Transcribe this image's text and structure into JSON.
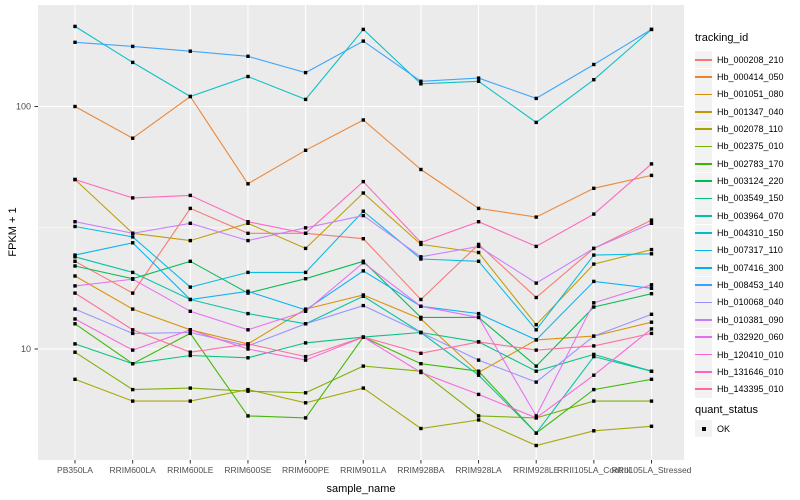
{
  "chart_data": {
    "type": "line",
    "title": "",
    "xlabel": "sample_name",
    "ylabel": "FPKM + 1",
    "y_scale": "log10",
    "y_ticks": [
      100,
      10
    ],
    "y_minor_ticks": [
      31.6
    ],
    "ylim": [
      3.5,
      260
    ],
    "grid": true,
    "legend_position": "right",
    "legend_title": "tracking_id",
    "point_marker": {
      "shape": "square",
      "color": "#000000"
    },
    "quant_legend": {
      "title": "quant_status",
      "items": [
        {
          "label": "OK"
        }
      ]
    },
    "layout_colors": {
      "panel_bg": "#EBEBEB",
      "grid": "#FFFFFF",
      "tick_text": "#4D4D4D",
      "tick_mark": "#333333"
    },
    "categories": [
      "PB350LA",
      "RRIM600LA",
      "RRIM600LE",
      "RRIM600SE",
      "RRIM600PE",
      "RRIM901LA",
      "RRIM928BA",
      "RRIM928LA",
      "RRIM928LE",
      "RRII105LA_Control",
      "RRII105LA_Stressed"
    ],
    "series": [
      {
        "name": "Hb_000208_210",
        "color": "#F8766D",
        "values": [
          23,
          17,
          38,
          30,
          30,
          28.5,
          16,
          27,
          16.3,
          26,
          34
        ]
      },
      {
        "name": "Hb_000414_050",
        "color": "#EA8331",
        "values": [
          100,
          74,
          110,
          48,
          66,
          88,
          55,
          38,
          35,
          46,
          52
        ]
      },
      {
        "name": "Hb_001051_080",
        "color": "#D89000",
        "values": [
          20,
          14.6,
          12,
          10.5,
          14.6,
          16.7,
          13.3,
          8,
          10.9,
          11.3,
          12.9
        ]
      },
      {
        "name": "Hb_001347_040",
        "color": "#C09B00",
        "values": [
          50,
          30,
          28,
          33,
          26,
          44,
          27,
          25,
          12.6,
          22.4,
          25.7
        ]
      },
      {
        "name": "Hb_002078_110",
        "color": "#A3A500",
        "values": [
          7.5,
          6.1,
          6.1,
          6.8,
          6,
          6.9,
          4.7,
          5.1,
          4,
          4.6,
          4.8
        ]
      },
      {
        "name": "Hb_002375_010",
        "color": "#7CAE00",
        "values": [
          9.7,
          6.8,
          6.9,
          6.7,
          6.6,
          8.5,
          8.1,
          5.3,
          5.2,
          6.1,
          6.1
        ]
      },
      {
        "name": "Hb_002783_170",
        "color": "#39B600",
        "values": [
          12.7,
          8.7,
          11.6,
          5.3,
          5.2,
          11.2,
          8.7,
          8.1,
          4.5,
          6.8,
          7.5
        ]
      },
      {
        "name": "Hb_003124_220",
        "color": "#00BB4E",
        "values": [
          22,
          19.5,
          23,
          17,
          19.5,
          23,
          13.5,
          13.5,
          8.5,
          14.9,
          16.9
        ]
      },
      {
        "name": "Hb_003549_150",
        "color": "#00BF7D",
        "values": [
          10.5,
          8.7,
          9.4,
          9.2,
          10.6,
          11.2,
          11.7,
          10.7,
          8.1,
          9.5,
          8.1
        ]
      },
      {
        "name": "Hb_003964_070",
        "color": "#00C1A3",
        "values": [
          24,
          20.7,
          16,
          14,
          12.7,
          16.5,
          11.7,
          7.8,
          4.5,
          9.3,
          8.1
        ]
      },
      {
        "name": "Hb_004310_150",
        "color": "#00BFC4",
        "values": [
          214,
          152,
          110,
          133,
          107,
          208,
          124,
          127,
          86,
          129,
          208
        ]
      },
      {
        "name": "Hb_007317_110",
        "color": "#00BAE0",
        "values": [
          32,
          29,
          18,
          20.7,
          20.7,
          37,
          23.5,
          23,
          12,
          24.4,
          24.7
        ]
      },
      {
        "name": "Hb_007416_300",
        "color": "#00B0F6",
        "values": [
          24.4,
          27.4,
          16,
          17.3,
          14.5,
          21,
          15,
          14,
          10.9,
          19,
          17.8
        ]
      },
      {
        "name": "Hb_008453_140",
        "color": "#35A2FF",
        "values": [
          184,
          177,
          169,
          161,
          138,
          186,
          127,
          131,
          108,
          149,
          208
        ]
      },
      {
        "name": "Hb_010068_040",
        "color": "#9590FF",
        "values": [
          14.6,
          11.6,
          11.7,
          10.3,
          12.7,
          15.1,
          11.7,
          9,
          7.3,
          11.3,
          13.9
        ]
      },
      {
        "name": "Hb_010381_090",
        "color": "#C77CFF",
        "values": [
          33.5,
          30,
          33,
          28,
          31.6,
          35.5,
          24,
          26.5,
          18.7,
          26,
          33
        ]
      },
      {
        "name": "Hb_032920_060",
        "color": "#E76BF3",
        "values": [
          18.2,
          19.4,
          14.3,
          12,
          14.3,
          22.7,
          15,
          13.5,
          5.3,
          15.5,
          18.4
        ]
      },
      {
        "name": "Hb_120410_010",
        "color": "#FA62DB",
        "values": [
          13.3,
          9.9,
          12,
          10,
          9,
          11.2,
          8,
          6.5,
          5.2,
          7.8,
          12.1
        ]
      },
      {
        "name": "Hb_131646_010",
        "color": "#FF62BC",
        "values": [
          50,
          42,
          43,
          33.5,
          30,
          49,
          27.5,
          33.5,
          26.5,
          36,
          58
        ]
      },
      {
        "name": "Hb_143395_010",
        "color": "#FF6A98",
        "values": [
          17,
          12,
          9.7,
          10.5,
          9.3,
          11.2,
          9.6,
          10.7,
          9.9,
          10.3,
          11.6
        ]
      }
    ]
  }
}
